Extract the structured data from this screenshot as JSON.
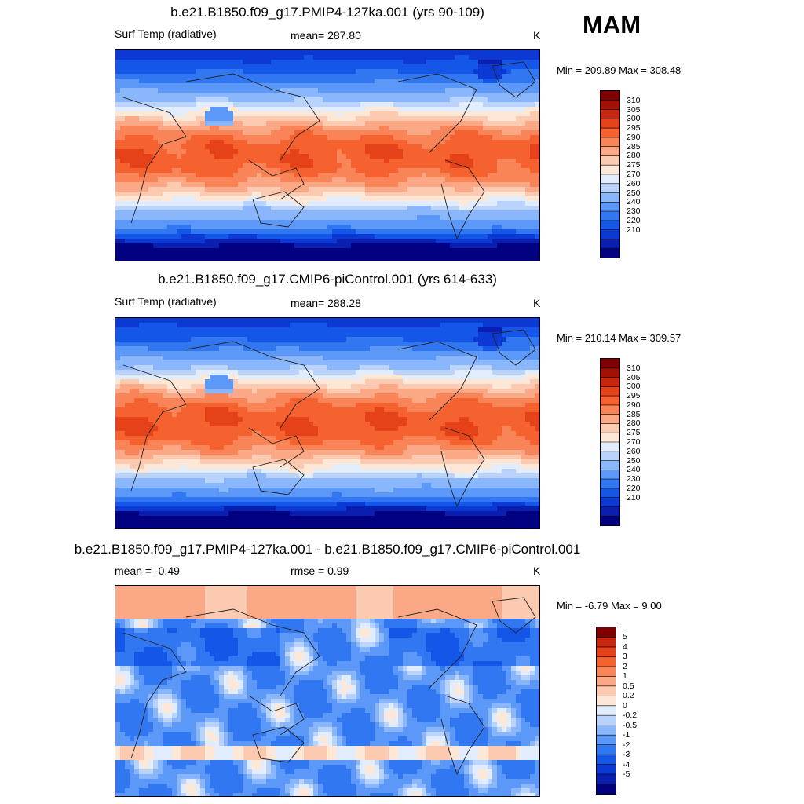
{
  "season": "MAM",
  "panels": [
    {
      "title": "b.e21.B1850.f09_g17.PMIP4-127ka.001 (yrs 90-109)",
      "left_label": "Surf Temp (radiative)",
      "stat_label": "mean= 287.80",
      "units": "K",
      "range": "Min = 209.89 Max = 308.48",
      "kind": "abs",
      "colorbar": {
        "colors": [
          "#000080",
          "#0a1fb0",
          "#0c39d4",
          "#1456e8",
          "#3277f2",
          "#5c98f7",
          "#8ab6fb",
          "#b9d3fd",
          "#e1ecfc",
          "#fde7d6",
          "#fccab0",
          "#fba886",
          "#f98457",
          "#f66130",
          "#e5421a",
          "#c72610",
          "#a21106",
          "#7f0000"
        ],
        "labels": [
          "210",
          "220",
          "230",
          "240",
          "250",
          "260",
          "270",
          "275",
          "280",
          "285",
          "290",
          "295",
          "300",
          "305",
          "310"
        ]
      }
    },
    {
      "title": "b.e21.B1850.f09_g17.CMIP6-piControl.001 (yrs 614-633)",
      "left_label": "Surf Temp (radiative)",
      "stat_label": "mean= 288.28",
      "units": "K",
      "range": "Min = 210.14 Max = 309.57",
      "kind": "abs",
      "colorbar": {
        "colors": [
          "#000080",
          "#0a1fb0",
          "#0c39d4",
          "#1456e8",
          "#3277f2",
          "#5c98f7",
          "#8ab6fb",
          "#b9d3fd",
          "#e1ecfc",
          "#fde7d6",
          "#fccab0",
          "#fba886",
          "#f98457",
          "#f66130",
          "#e5421a",
          "#c72610",
          "#a21106",
          "#7f0000"
        ],
        "labels": [
          "210",
          "220",
          "230",
          "240",
          "250",
          "260",
          "270",
          "275",
          "280",
          "285",
          "290",
          "295",
          "300",
          "305",
          "310"
        ]
      }
    },
    {
      "title": "b.e21.B1850.f09_g17.PMIP4-127ka.001 - b.e21.B1850.f09_g17.CMIP6-piControl.001",
      "left_label": "mean =  -0.49",
      "stat_label": "rmse =   0.99",
      "units": "K",
      "range": "Min =  -6.79 Max =   9.00",
      "kind": "diff",
      "colorbar": {
        "colors": [
          "#000080",
          "#0a1fb0",
          "#0c39d4",
          "#1456e8",
          "#3277f2",
          "#5c98f7",
          "#8ab6fb",
          "#b9d3fd",
          "#e1ecfc",
          "#fde7d6",
          "#fccab0",
          "#fba886",
          "#f98457",
          "#f66130",
          "#e5421a",
          "#c72610",
          "#7f0000"
        ],
        "labels": [
          "-5",
          "-4",
          "-3",
          "-2",
          "-1",
          "-0.5",
          "-0.2",
          "0",
          "0.2",
          "0.5",
          "1",
          "2",
          "3",
          "4",
          "5"
        ]
      }
    }
  ]
}
